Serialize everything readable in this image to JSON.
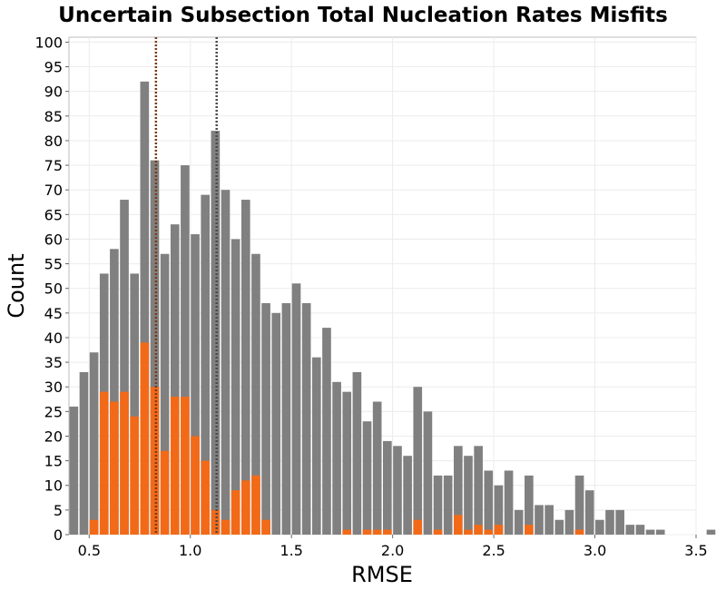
{
  "chart_data": {
    "type": "bar",
    "title": "Uncertain Subsection Total Nucleation Rates Misfits",
    "xlabel": "RMSE",
    "ylabel": "Count",
    "xlim": [
      0.4,
      3.5
    ],
    "ylim": [
      0,
      101
    ],
    "grid": true,
    "x_ticks": [
      "0.5",
      "1.0",
      "1.5",
      "2.0",
      "2.5",
      "3.0",
      "3.5"
    ],
    "y_ticks": [
      "0",
      "5",
      "10",
      "15",
      "20",
      "25",
      "30",
      "35",
      "40",
      "45",
      "50",
      "55",
      "60",
      "65",
      "70",
      "75",
      "80",
      "85",
      "90",
      "95",
      "100"
    ],
    "bin_start": 0.4,
    "bin_width": 0.05,
    "series": [
      {
        "color": "#808080",
        "values": [
          26,
          33,
          37,
          53,
          58,
          68,
          53,
          92,
          76,
          57,
          63,
          75,
          61,
          69,
          82,
          70,
          60,
          68,
          57,
          47,
          45,
          47,
          51,
          47,
          36,
          42,
          31,
          29,
          33,
          23,
          27,
          19,
          18,
          16,
          30,
          25,
          12,
          12,
          18,
          16,
          18,
          13,
          10,
          13,
          5,
          12,
          6,
          6,
          3,
          5,
          12,
          9,
          3,
          5,
          5,
          2,
          2,
          1,
          1,
          0,
          0,
          0,
          0,
          1
        ]
      },
      {
        "color": "#F26A18",
        "values": [
          0,
          0,
          3,
          29,
          27,
          29,
          24,
          39,
          30,
          17,
          28,
          28,
          20,
          15,
          5,
          3,
          9,
          11,
          12,
          3,
          0,
          0,
          0,
          0,
          0,
          0,
          0,
          1,
          0,
          1,
          1,
          1,
          0,
          0,
          3,
          0,
          1,
          0,
          4,
          1,
          2,
          1,
          2,
          0,
          0,
          2,
          0,
          0,
          0,
          0,
          1,
          0,
          0,
          0,
          0,
          0,
          0,
          0,
          0,
          0,
          0,
          0,
          0,
          0
        ]
      }
    ],
    "reference_lines": [
      {
        "x": 0.83,
        "color": "#7a3a12",
        "style": "dotted"
      },
      {
        "x": 1.13,
        "color": "#4a4a4a",
        "style": "dotted"
      }
    ]
  }
}
